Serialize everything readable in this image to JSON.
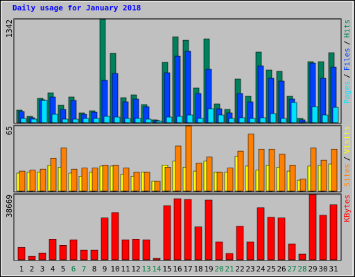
{
  "chart_data": [
    {
      "type": "bar",
      "title": "Daily usage for January 2018",
      "title_color": "#0000ff",
      "legend_separator": "/",
      "series": [
        {
          "name": "Pages",
          "color": "#00e0ff",
          "values": [
            54,
            45,
            288,
            108,
            45,
            45,
            54,
            54,
            81,
            72,
            54,
            54,
            45,
            18,
            72,
            81,
            99,
            54,
            180,
            99,
            54,
            63,
            54,
            63,
            117,
            54,
            261,
            9,
            207,
            99,
            198
          ]
        },
        {
          "name": "Files",
          "color": "#0040ff",
          "values": [
            144,
            63,
            297,
            333,
            171,
            288,
            108,
            135,
            549,
            639,
            270,
            306,
            207,
            27,
            648,
            864,
            927,
            378,
            693,
            180,
            126,
            378,
            270,
            738,
            576,
            540,
            306,
            36,
            774,
            576,
            720
          ]
        },
        {
          "name": "Hits",
          "color": "#00805c",
          "values": [
            162,
            81,
            315,
            387,
            225,
            333,
            126,
            153,
            1342,
            900,
            324,
            360,
            234,
            36,
            783,
            1116,
            1071,
            450,
            1089,
            243,
            171,
            567,
            342,
            918,
            684,
            666,
            342,
            54,
            792,
            792,
            909
          ]
        }
      ],
      "ylim": [
        0,
        1342
      ],
      "yticks": [
        1342
      ]
    },
    {
      "type": "bar",
      "legend_separator": "/",
      "series": [
        {
          "name": "Sites",
          "color": "#ff8000",
          "values": [
            20,
            21,
            22,
            33,
            43,
            22,
            23,
            23,
            26,
            26,
            23,
            19,
            19,
            10,
            24,
            45,
            65,
            28,
            34,
            19,
            23,
            40,
            57,
            42,
            42,
            37,
            26,
            12,
            43,
            31,
            42
          ]
        },
        {
          "name": "Visits",
          "color": "#ffff00",
          "values": [
            18,
            19,
            19,
            26,
            24,
            18,
            15,
            19,
            25,
            25,
            17,
            15,
            19,
            10,
            26,
            30,
            24,
            20,
            30,
            19,
            19,
            35,
            25,
            21,
            26,
            24,
            20,
            11,
            25,
            26,
            27
          ]
        }
      ],
      "ylim": [
        0,
        65
      ],
      "yticks": [
        65
      ]
    },
    {
      "type": "bar",
      "categories": [
        "1",
        "2",
        "3",
        "4",
        "5",
        "6",
        "7",
        "8",
        "9",
        "10",
        "11",
        "12",
        "13",
        "14",
        "15",
        "16",
        "17",
        "18",
        "19",
        "20",
        "21",
        "22",
        "23",
        "24",
        "25",
        "26",
        "27",
        "28",
        "29",
        "30",
        "31"
      ],
      "category_colors": [
        "#000000",
        "#000000",
        "#000000",
        "#000000",
        "#000000",
        "#008040",
        "#008040",
        "#000000",
        "#000000",
        "#000000",
        "#000000",
        "#000000",
        "#008040",
        "#008040",
        "#000000",
        "#000000",
        "#000000",
        "#000000",
        "#000000",
        "#008040",
        "#008040",
        "#000000",
        "#000000",
        "#000000",
        "#000000",
        "#000000",
        "#008040",
        "#008040",
        "#000000",
        "#000000",
        "#000000"
      ],
      "series": [
        {
          "name": "KBytes",
          "color": "#ff0000",
          "values": [
            7300,
            2000,
            4000,
            12200,
            8500,
            11800,
            5700,
            5700,
            24800,
            28000,
            11800,
            12200,
            11800,
            800,
            32100,
            36200,
            35800,
            19500,
            35400,
            10600,
            3700,
            19900,
            10600,
            30900,
            25200,
            24800,
            9400,
            3300,
            38669,
            26400,
            32600
          ]
        }
      ],
      "ylim": [
        0,
        38669
      ],
      "yticks": [
        38669
      ]
    }
  ]
}
